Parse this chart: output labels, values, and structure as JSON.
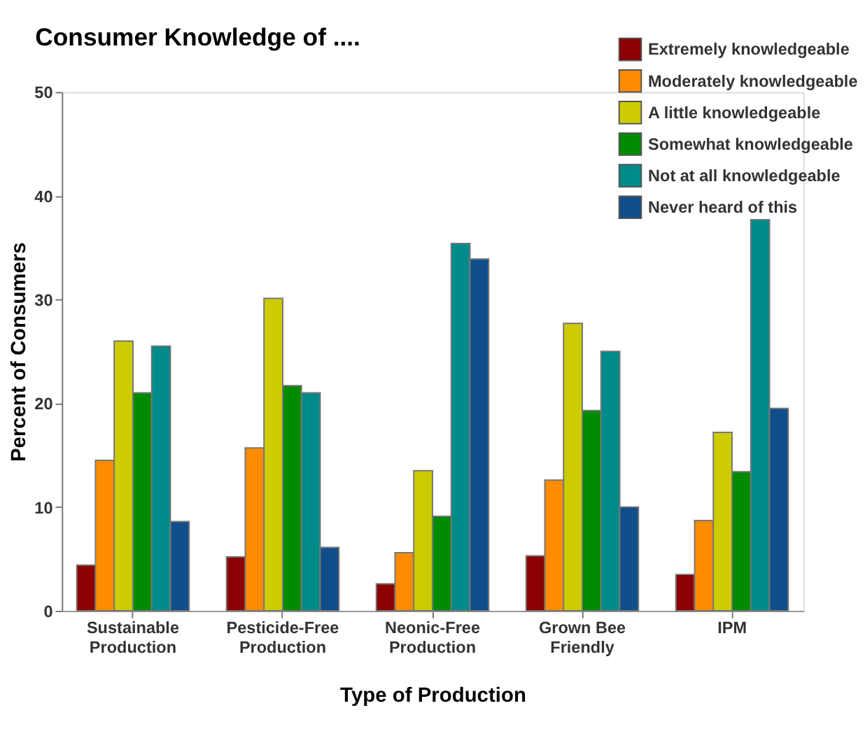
{
  "chart_data": {
    "type": "bar",
    "title": "Consumer Knowledge of ....",
    "xlabel": "Type of Production",
    "ylabel": "Percent of Consumers",
    "categories": [
      "Sustainable\nProduction",
      "Pesticide-Free\nProduction",
      "Neonic-Free\nProduction",
      "Grown Bee\nFriendly",
      "IPM"
    ],
    "series": [
      {
        "name": "Extremely knowledgeable",
        "color": "#8b0000",
        "values": [
          4.4,
          5.2,
          2.6,
          5.3,
          3.5
        ]
      },
      {
        "name": "Moderately knowledgeable",
        "color": "#ff8c00",
        "values": [
          14.5,
          15.7,
          5.6,
          12.6,
          8.7
        ]
      },
      {
        "name": "A little knowledgeable",
        "color": "#cccc00",
        "values": [
          26,
          30.1,
          13.5,
          27.7,
          17.2
        ]
      },
      {
        "name": "Somewhat knowledgeable",
        "color": "#008b00",
        "values": [
          21,
          21.7,
          9.1,
          19.3,
          13.4
        ]
      },
      {
        "name": "Not at all knowledgeable",
        "color": "#008b8b",
        "values": [
          25.5,
          21,
          35.4,
          25,
          37.7
        ]
      },
      {
        "name": "Never heard of this",
        "color": "#104e8b",
        "values": [
          8.6,
          6.1,
          33.9,
          10,
          19.5
        ]
      }
    ],
    "ylim": [
      0,
      50
    ],
    "yticks": [
      0,
      10,
      20,
      30,
      40,
      50
    ],
    "grid": false,
    "legend": "top right"
  }
}
